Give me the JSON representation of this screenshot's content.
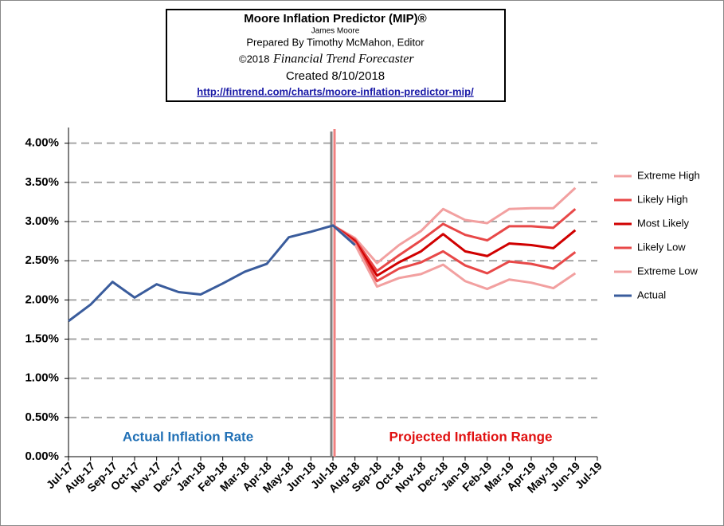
{
  "chart_data": {
    "type": "line",
    "title": "Moore Inflation Predictor (MIP)®",
    "author": "James Moore",
    "prepared_by": "Prepared  By Timothy McMahon, Editor",
    "copyright": "©2018",
    "publisher": "Financial Trend Forecaster",
    "created": "Created  8/10/2018",
    "url": "http://fintrend.com/charts/moore-inflation-predictor-mip/",
    "annotations": [
      "Actual Inflation Rate",
      "Projected Inflation Range"
    ],
    "categories": [
      "Jul-17",
      "Aug-17",
      "Sep-17",
      "Oct-17",
      "Nov-17",
      "Dec-17",
      "Jan-18",
      "Feb-18",
      "Mar-18",
      "Apr-18",
      "May-18",
      "Jun-18",
      "Jul-18",
      "Aug-18",
      "Sep-18",
      "Oct-18",
      "Nov-18",
      "Dec-18",
      "Jan-19",
      "Feb-19",
      "Mar-19",
      "Apr-19",
      "May-19",
      "Jun-19",
      "Jul-19"
    ],
    "series": [
      {
        "name": "Extreme High",
        "color": "#f2a0a0",
        "values": [
          null,
          null,
          null,
          null,
          null,
          null,
          null,
          null,
          null,
          null,
          null,
          null,
          2.95,
          2.79,
          2.47,
          2.7,
          2.88,
          3.16,
          3.02,
          2.98,
          3.16,
          3.17,
          3.17,
          3.43,
          null
        ]
      },
      {
        "name": "Likely High",
        "color": "#e84848",
        "values": [
          null,
          null,
          null,
          null,
          null,
          null,
          null,
          null,
          null,
          null,
          null,
          null,
          2.95,
          2.77,
          2.37,
          2.57,
          2.76,
          2.97,
          2.83,
          2.76,
          2.94,
          2.94,
          2.92,
          3.16,
          null
        ]
      },
      {
        "name": "Most Likely",
        "color": "#d00000",
        "values": [
          null,
          null,
          null,
          null,
          null,
          null,
          null,
          null,
          null,
          null,
          null,
          null,
          2.95,
          2.75,
          2.31,
          2.48,
          2.62,
          2.84,
          2.62,
          2.56,
          2.72,
          2.7,
          2.66,
          2.89,
          null
        ]
      },
      {
        "name": "Likely Low",
        "color": "#e84848",
        "values": [
          null,
          null,
          null,
          null,
          null,
          null,
          null,
          null,
          null,
          null,
          null,
          null,
          2.95,
          2.73,
          2.24,
          2.4,
          2.48,
          2.62,
          2.44,
          2.34,
          2.49,
          2.46,
          2.4,
          2.61,
          null
        ]
      },
      {
        "name": "Extreme Low",
        "color": "#f2a0a0",
        "values": [
          null,
          null,
          null,
          null,
          null,
          null,
          null,
          null,
          null,
          null,
          null,
          null,
          2.95,
          2.71,
          2.17,
          2.28,
          2.33,
          2.45,
          2.24,
          2.14,
          2.26,
          2.22,
          2.15,
          2.34,
          null
        ]
      },
      {
        "name": "Actual",
        "color": "#3a5c9c",
        "values": [
          1.73,
          1.94,
          2.23,
          2.03,
          2.2,
          2.1,
          2.07,
          2.21,
          2.36,
          2.46,
          2.8,
          2.87,
          2.95,
          2.7,
          null,
          null,
          null,
          null,
          null,
          null,
          null,
          null,
          null,
          null,
          null
        ]
      }
    ],
    "ylim": [
      0,
      4.2
    ],
    "yticks": [
      {
        "value": 0,
        "label": "0.00%"
      },
      {
        "value": 0.5,
        "label": "0.50%"
      },
      {
        "value": 1,
        "label": "1.00%"
      },
      {
        "value": 1.5,
        "label": "1.50%"
      },
      {
        "value": 2,
        "label": "2.00%"
      },
      {
        "value": 2.5,
        "label": "2.50%"
      },
      {
        "value": 3,
        "label": "3.00%"
      },
      {
        "value": 3.5,
        "label": "3.50%"
      },
      {
        "value": 4,
        "label": "4.00%"
      }
    ],
    "grid": true
  }
}
